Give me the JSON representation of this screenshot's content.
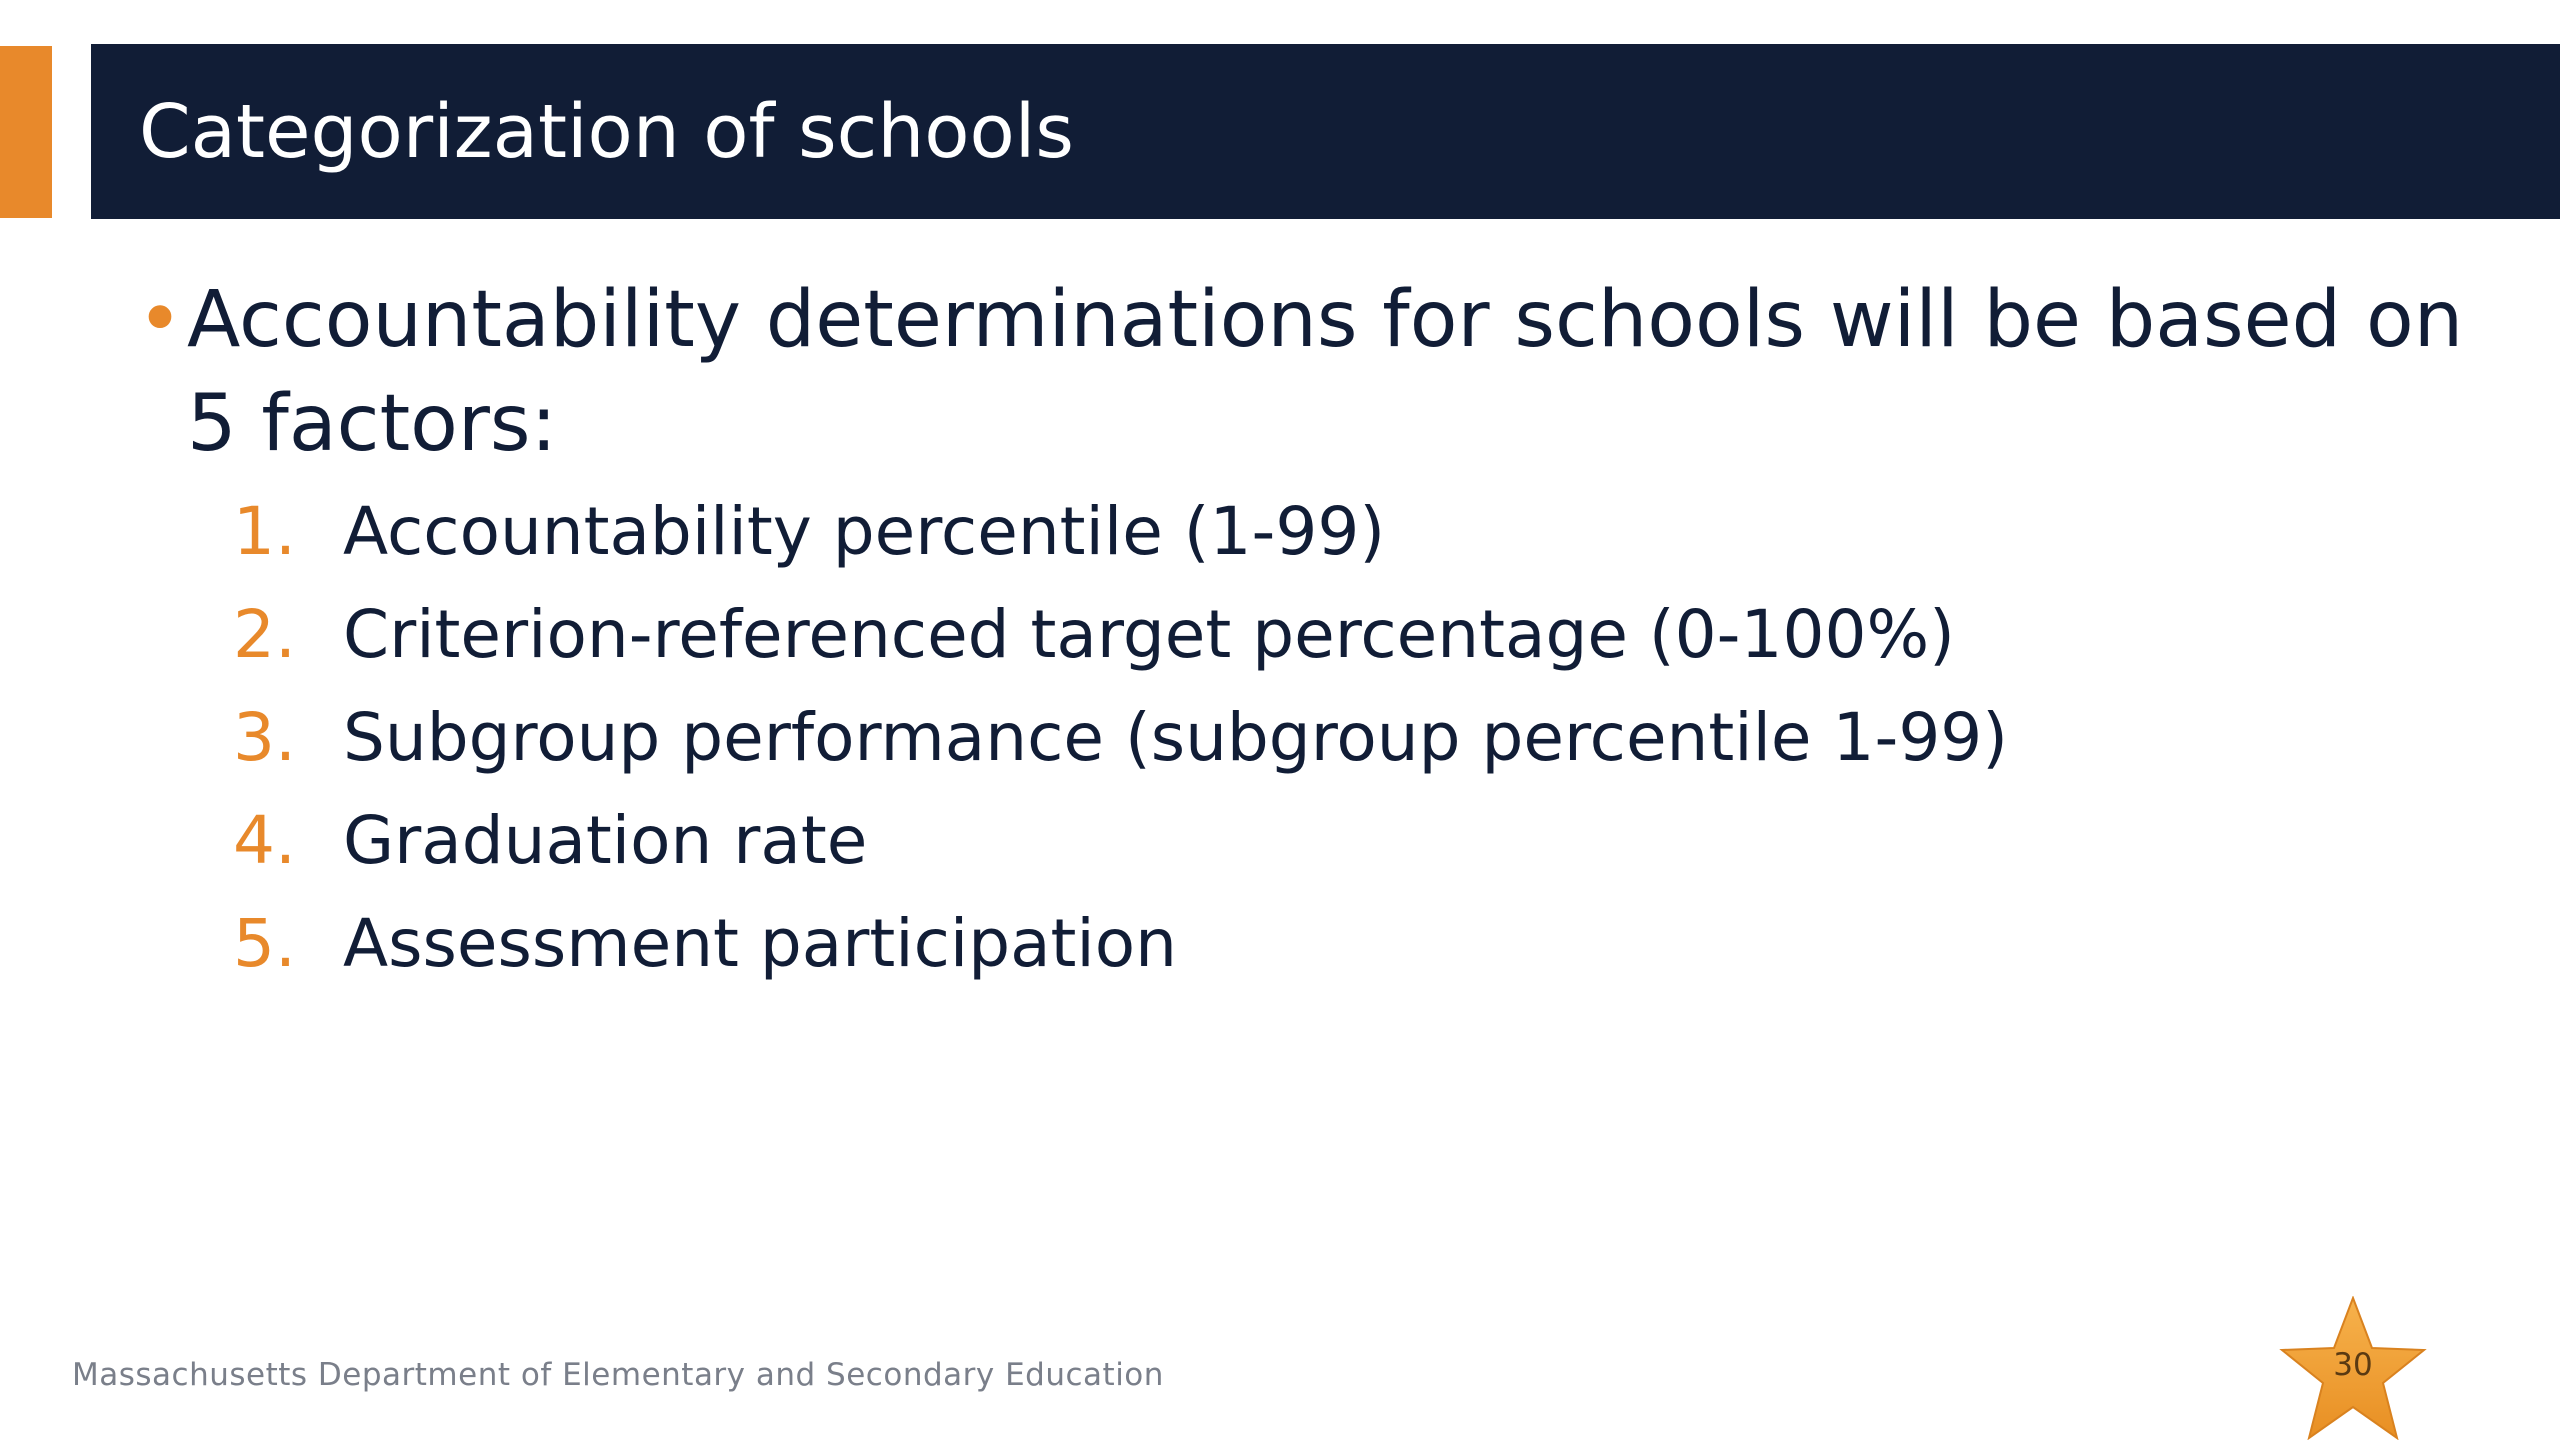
{
  "slide": {
    "title": "Categorization of schools",
    "bullet_marker": "•",
    "bullet_text": "Accountability determinations for schools will be based on 5 factors:",
    "factors": [
      {
        "number": "1.",
        "text": "Accountability percentile (1-99)"
      },
      {
        "number": "2.",
        "text": "Criterion-referenced target percentage (0-100%)"
      },
      {
        "number": "3.",
        "text": "Subgroup performance (subgroup percentile 1-99)"
      },
      {
        "number": "4.",
        "text": "Graduation rate"
      },
      {
        "number": "5.",
        "text": "Assessment participation"
      }
    ],
    "footer_text": "Massachusetts Department of Elementary and Secondary Education",
    "page_number": "30",
    "star_icon": "star-icon"
  },
  "colors": {
    "title_bar": "#111d36",
    "accent": "#e8892b",
    "body_text": "#111d36",
    "footer_text": "#7a7f8a",
    "star_fill": "#f0a53c"
  }
}
